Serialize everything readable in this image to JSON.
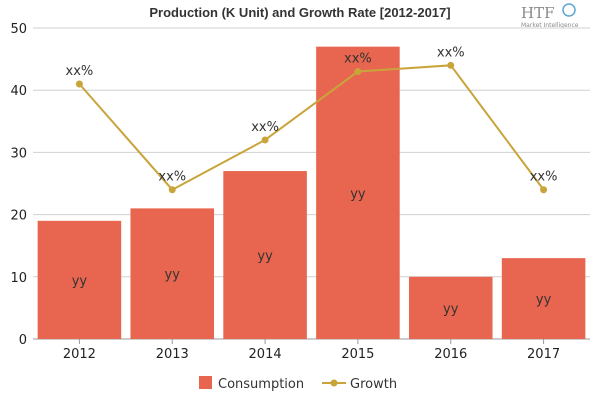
{
  "chart_data": {
    "type": "bar",
    "title": "Production (K Unit) and Growth Rate [2012-2017]",
    "categories": [
      "2012",
      "2013",
      "2014",
      "2015",
      "2016",
      "2017"
    ],
    "xlabel": "",
    "ylabel": "",
    "ylim": [
      0,
      50
    ],
    "yticks": [
      0,
      10,
      20,
      30,
      40,
      50
    ],
    "grid": true,
    "legend_position": "bottom-center",
    "series": [
      {
        "name": "Consumption",
        "kind": "bar",
        "color": "#e8664f",
        "values": [
          19,
          21,
          27,
          47,
          10,
          13
        ],
        "data_labels": [
          "yy",
          "yy",
          "yy",
          "yy",
          "yy",
          "yy"
        ]
      },
      {
        "name": "Growth",
        "kind": "line",
        "color": "#c9a43a",
        "values": [
          41,
          24,
          32,
          43,
          44,
          24
        ],
        "data_labels": [
          "xx%",
          "xx%",
          "xx%",
          "xx%",
          "xx%",
          "xx%"
        ]
      }
    ]
  },
  "logo": {
    "text": "HTF",
    "subtitle": "Market Intelligence"
  }
}
